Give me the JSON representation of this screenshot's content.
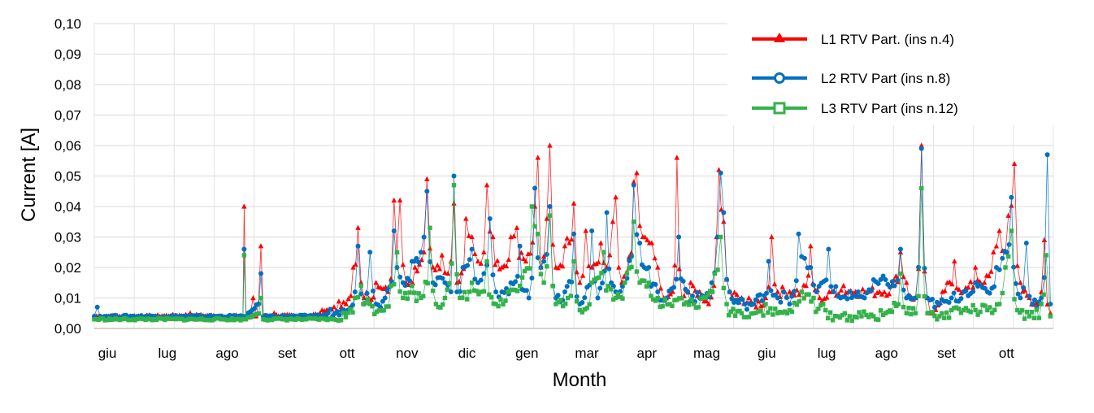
{
  "chart_data": {
    "type": "line",
    "xlabel": "Month",
    "ylabel": "Current  [A]",
    "ylim": [
      0,
      0.1
    ],
    "yticks": [
      "0,00",
      "0,01",
      "0,02",
      "0,03",
      "0,04",
      "0,05",
      "0,06",
      "0,07",
      "0,08",
      "0,09",
      "0,10"
    ],
    "categories": [
      "giu",
      "lug",
      "ago",
      "set",
      "ott",
      "nov",
      "dic",
      "gen",
      "mar",
      "apr",
      "mag",
      "giu",
      "lug",
      "ago",
      "set",
      "ott"
    ],
    "grid": true,
    "legend_position": "top-right",
    "series": [
      {
        "name": "L1 RTV Part. (ins n.4)",
        "color": "#ff0000",
        "marker": "triangle",
        "keypoints": [
          [
            0,
            0.004
          ],
          [
            0.35,
            0.004
          ],
          [
            0.95,
            0.004
          ],
          [
            1.6,
            0.005
          ],
          [
            2.1,
            0.004
          ],
          [
            2.48,
            0.004
          ],
          [
            2.5,
            0.04
          ],
          [
            2.53,
            0.004
          ],
          [
            2.65,
            0.01
          ],
          [
            2.7,
            0.004
          ],
          [
            2.78,
            0.027
          ],
          [
            2.82,
            0.004
          ],
          [
            3.0,
            0.005
          ],
          [
            3.4,
            0.004
          ],
          [
            3.8,
            0.006
          ],
          [
            4.0,
            0.007
          ],
          [
            4.2,
            0.008
          ],
          [
            4.32,
            0.02
          ],
          [
            4.4,
            0.033
          ],
          [
            4.5,
            0.01
          ],
          [
            4.7,
            0.015
          ],
          [
            4.9,
            0.012
          ],
          [
            5.0,
            0.042
          ],
          [
            5.05,
            0.025
          ],
          [
            5.1,
            0.042
          ],
          [
            5.2,
            0.015
          ],
          [
            5.35,
            0.02
          ],
          [
            5.5,
            0.025
          ],
          [
            5.55,
            0.049
          ],
          [
            5.65,
            0.02
          ],
          [
            5.8,
            0.024
          ],
          [
            5.9,
            0.018
          ],
          [
            6.0,
            0.041
          ],
          [
            6.05,
            0.015
          ],
          [
            6.2,
            0.036
          ],
          [
            6.3,
            0.03
          ],
          [
            6.4,
            0.022
          ],
          [
            6.5,
            0.025
          ],
          [
            6.55,
            0.047
          ],
          [
            6.65,
            0.03
          ],
          [
            6.8,
            0.02
          ],
          [
            6.95,
            0.03
          ],
          [
            7.05,
            0.033
          ],
          [
            7.2,
            0.022
          ],
          [
            7.35,
            0.04
          ],
          [
            7.4,
            0.056
          ],
          [
            7.45,
            0.02
          ],
          [
            7.55,
            0.036
          ],
          [
            7.6,
            0.06
          ],
          [
            7.7,
            0.02
          ],
          [
            7.85,
            0.027
          ],
          [
            8.0,
            0.041
          ],
          [
            8.1,
            0.015
          ],
          [
            8.2,
            0.032
          ],
          [
            8.3,
            0.02
          ],
          [
            8.45,
            0.028
          ],
          [
            8.55,
            0.02
          ],
          [
            8.65,
            0.035
          ],
          [
            8.7,
            0.043
          ],
          [
            8.8,
            0.015
          ],
          [
            9.0,
            0.048
          ],
          [
            9.05,
            0.051
          ],
          [
            9.15,
            0.03
          ],
          [
            9.3,
            0.028
          ],
          [
            9.4,
            0.02
          ],
          [
            9.5,
            0.01
          ],
          [
            9.65,
            0.012
          ],
          [
            9.72,
            0.056
          ],
          [
            9.8,
            0.01
          ],
          [
            9.95,
            0.015
          ],
          [
            10.1,
            0.012
          ],
          [
            10.25,
            0.008
          ],
          [
            10.38,
            0.03
          ],
          [
            10.42,
            0.052
          ],
          [
            10.5,
            0.035
          ],
          [
            10.6,
            0.012
          ],
          [
            10.8,
            0.01
          ],
          [
            11.0,
            0.008
          ],
          [
            11.2,
            0.01
          ],
          [
            11.3,
            0.03
          ],
          [
            11.4,
            0.012
          ],
          [
            11.6,
            0.012
          ],
          [
            11.8,
            0.012
          ],
          [
            11.95,
            0.027
          ],
          [
            12.1,
            0.01
          ],
          [
            12.3,
            0.012
          ],
          [
            12.5,
            0.014
          ],
          [
            12.7,
            0.012
          ],
          [
            12.9,
            0.012
          ],
          [
            13.1,
            0.012
          ],
          [
            13.3,
            0.014
          ],
          [
            13.45,
            0.025
          ],
          [
            13.55,
            0.015
          ],
          [
            13.7,
            0.01
          ],
          [
            13.8,
            0.06
          ],
          [
            13.9,
            0.01
          ],
          [
            14.0,
            0.005
          ],
          [
            14.15,
            0.012
          ],
          [
            14.35,
            0.022
          ],
          [
            14.5,
            0.012
          ],
          [
            14.7,
            0.02
          ],
          [
            14.85,
            0.015
          ],
          [
            15.0,
            0.025
          ],
          [
            15.1,
            0.032
          ],
          [
            15.2,
            0.025
          ],
          [
            15.25,
            0.037
          ],
          [
            15.35,
            0.054
          ],
          [
            15.45,
            0.015
          ],
          [
            15.6,
            0.01
          ],
          [
            15.75,
            0.008
          ],
          [
            15.85,
            0.029
          ],
          [
            15.95,
            0.005
          ]
        ]
      },
      {
        "name": "L2 RTV Part (ins n.8)",
        "color": "#0070c0",
        "marker": "circle",
        "keypoints": [
          [
            0,
            0.004
          ],
          [
            0.05,
            0.007
          ],
          [
            0.1,
            0.004
          ],
          [
            1.0,
            0.004
          ],
          [
            2.0,
            0.004
          ],
          [
            2.48,
            0.004
          ],
          [
            2.5,
            0.026
          ],
          [
            2.53,
            0.004
          ],
          [
            2.78,
            0.018
          ],
          [
            2.82,
            0.004
          ],
          [
            3.4,
            0.004
          ],
          [
            3.9,
            0.005
          ],
          [
            4.2,
            0.005
          ],
          [
            4.35,
            0.012
          ],
          [
            4.4,
            0.027
          ],
          [
            4.5,
            0.008
          ],
          [
            4.6,
            0.025
          ],
          [
            4.7,
            0.008
          ],
          [
            4.85,
            0.01
          ],
          [
            5.0,
            0.032
          ],
          [
            5.05,
            0.02
          ],
          [
            5.15,
            0.015
          ],
          [
            5.3,
            0.022
          ],
          [
            5.45,
            0.025
          ],
          [
            5.55,
            0.045
          ],
          [
            5.65,
            0.015
          ],
          [
            5.85,
            0.015
          ],
          [
            5.95,
            0.012
          ],
          [
            6.0,
            0.05
          ],
          [
            6.05,
            0.012
          ],
          [
            6.15,
            0.02
          ],
          [
            6.3,
            0.026
          ],
          [
            6.4,
            0.015
          ],
          [
            6.5,
            0.018
          ],
          [
            6.6,
            0.036
          ],
          [
            6.7,
            0.012
          ],
          [
            6.8,
            0.012
          ],
          [
            6.95,
            0.015
          ],
          [
            7.1,
            0.027
          ],
          [
            7.25,
            0.01
          ],
          [
            7.35,
            0.046
          ],
          [
            7.45,
            0.02
          ],
          [
            7.5,
            0.022
          ],
          [
            7.6,
            0.04
          ],
          [
            7.7,
            0.01
          ],
          [
            7.85,
            0.012
          ],
          [
            8.0,
            0.031
          ],
          [
            8.1,
            0.008
          ],
          [
            8.3,
            0.032
          ],
          [
            8.4,
            0.01
          ],
          [
            8.55,
            0.038
          ],
          [
            8.7,
            0.012
          ],
          [
            8.85,
            0.015
          ],
          [
            9.0,
            0.047
          ],
          [
            9.1,
            0.028
          ],
          [
            9.25,
            0.02
          ],
          [
            9.4,
            0.012
          ],
          [
            9.55,
            0.01
          ],
          [
            9.75,
            0.03
          ],
          [
            9.9,
            0.012
          ],
          [
            10.1,
            0.01
          ],
          [
            10.3,
            0.015
          ],
          [
            10.4,
            0.03
          ],
          [
            10.45,
            0.051
          ],
          [
            10.5,
            0.038
          ],
          [
            10.6,
            0.012
          ],
          [
            10.85,
            0.008
          ],
          [
            11.0,
            0.008
          ],
          [
            11.25,
            0.022
          ],
          [
            11.4,
            0.01
          ],
          [
            11.5,
            0.012
          ],
          [
            11.6,
            0.008
          ],
          [
            11.75,
            0.031
          ],
          [
            11.85,
            0.023
          ],
          [
            11.95,
            0.02
          ],
          [
            12.05,
            0.012
          ],
          [
            12.25,
            0.026
          ],
          [
            12.45,
            0.01
          ],
          [
            12.6,
            0.012
          ],
          [
            12.85,
            0.01
          ],
          [
            13.0,
            0.016
          ],
          [
            13.2,
            0.016
          ],
          [
            13.35,
            0.014
          ],
          [
            13.45,
            0.026
          ],
          [
            13.55,
            0.01
          ],
          [
            13.7,
            0.01
          ],
          [
            13.8,
            0.059
          ],
          [
            13.9,
            0.01
          ],
          [
            14.1,
            0.008
          ],
          [
            14.3,
            0.01
          ],
          [
            14.5,
            0.012
          ],
          [
            14.7,
            0.015
          ],
          [
            14.9,
            0.012
          ],
          [
            15.05,
            0.02
          ],
          [
            15.15,
            0.023
          ],
          [
            15.3,
            0.043
          ],
          [
            15.45,
            0.01
          ],
          [
            15.55,
            0.028
          ],
          [
            15.65,
            0.008
          ],
          [
            15.8,
            0.01
          ],
          [
            15.9,
            0.057
          ],
          [
            15.95,
            0.008
          ]
        ]
      },
      {
        "name": "L3 RTV Part (ins n.12)",
        "color": "#33b24a",
        "marker": "square",
        "keypoints": [
          [
            0,
            0.003
          ],
          [
            1.0,
            0.003
          ],
          [
            2.0,
            0.003
          ],
          [
            2.48,
            0.003
          ],
          [
            2.5,
            0.024
          ],
          [
            2.53,
            0.003
          ],
          [
            2.78,
            0.01
          ],
          [
            2.82,
            0.003
          ],
          [
            3.5,
            0.003
          ],
          [
            4.0,
            0.003
          ],
          [
            4.35,
            0.01
          ],
          [
            4.45,
            0.014
          ],
          [
            4.6,
            0.008
          ],
          [
            4.75,
            0.006
          ],
          [
            4.95,
            0.014
          ],
          [
            5.05,
            0.025
          ],
          [
            5.15,
            0.01
          ],
          [
            5.3,
            0.014
          ],
          [
            5.45,
            0.01
          ],
          [
            5.6,
            0.033
          ],
          [
            5.7,
            0.008
          ],
          [
            5.85,
            0.01
          ],
          [
            6.0,
            0.047
          ],
          [
            6.1,
            0.01
          ],
          [
            6.3,
            0.015
          ],
          [
            6.45,
            0.012
          ],
          [
            6.55,
            0.022
          ],
          [
            6.7,
            0.008
          ],
          [
            6.9,
            0.012
          ],
          [
            7.1,
            0.014
          ],
          [
            7.3,
            0.04
          ],
          [
            7.4,
            0.031
          ],
          [
            7.5,
            0.015
          ],
          [
            7.6,
            0.037
          ],
          [
            7.7,
            0.008
          ],
          [
            7.9,
            0.01
          ],
          [
            8.0,
            0.022
          ],
          [
            8.1,
            0.006
          ],
          [
            8.3,
            0.015
          ],
          [
            8.5,
            0.025
          ],
          [
            8.7,
            0.01
          ],
          [
            8.85,
            0.015
          ],
          [
            9.0,
            0.035
          ],
          [
            9.1,
            0.015
          ],
          [
            9.25,
            0.015
          ],
          [
            9.4,
            0.01
          ],
          [
            9.6,
            0.008
          ],
          [
            9.8,
            0.01
          ],
          [
            10.0,
            0.008
          ],
          [
            10.2,
            0.01
          ],
          [
            10.35,
            0.018
          ],
          [
            10.45,
            0.03
          ],
          [
            10.55,
            0.008
          ],
          [
            10.8,
            0.005
          ],
          [
            11.0,
            0.005
          ],
          [
            11.2,
            0.008
          ],
          [
            11.4,
            0.005
          ],
          [
            11.6,
            0.006
          ],
          [
            11.8,
            0.012
          ],
          [
            12.0,
            0.01
          ],
          [
            12.2,
            0.006
          ],
          [
            12.4,
            0.004
          ],
          [
            12.6,
            0.004
          ],
          [
            12.8,
            0.004
          ],
          [
            13.0,
            0.004
          ],
          [
            13.2,
            0.005
          ],
          [
            13.45,
            0.018
          ],
          [
            13.55,
            0.005
          ],
          [
            13.7,
            0.005
          ],
          [
            13.8,
            0.046
          ],
          [
            13.9,
            0.005
          ],
          [
            14.1,
            0.004
          ],
          [
            14.3,
            0.006
          ],
          [
            14.5,
            0.006
          ],
          [
            14.7,
            0.006
          ],
          [
            14.9,
            0.006
          ],
          [
            15.1,
            0.008
          ],
          [
            15.2,
            0.02
          ],
          [
            15.3,
            0.032
          ],
          [
            15.4,
            0.006
          ],
          [
            15.6,
            0.004
          ],
          [
            15.8,
            0.008
          ],
          [
            15.88,
            0.024
          ],
          [
            15.95,
            0.004
          ]
        ]
      }
    ]
  }
}
